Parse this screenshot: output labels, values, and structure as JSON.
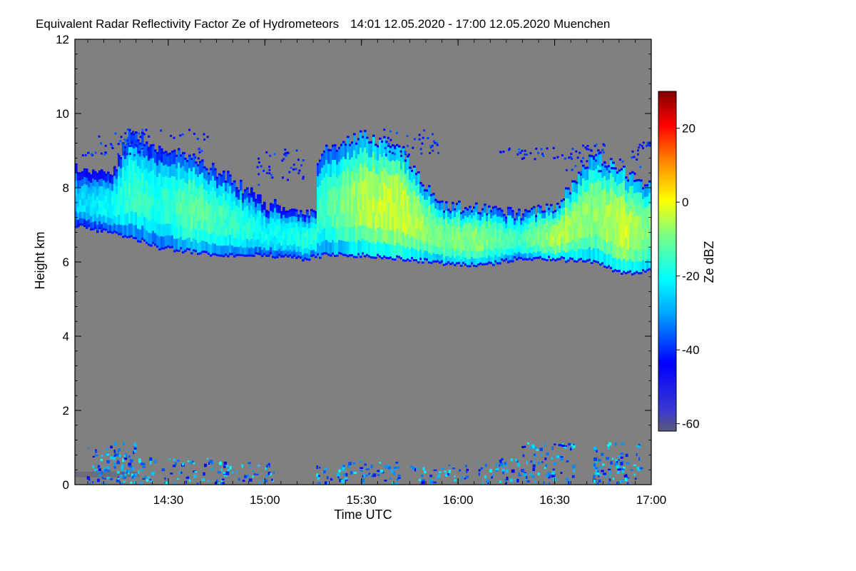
{
  "chart_data": {
    "type": "heatmap",
    "title": "Equivalent Radar Reflectivity Factor Ze of Hydrometeors",
    "time_range": "14:01 12.05.2020 - 17:00 12.05.2020",
    "location": "Muenchen",
    "xlabel": "Time UTC",
    "ylabel": "Height km",
    "x_ticks": [
      "14:30",
      "15:00",
      "15:30",
      "16:00",
      "16:30",
      "17:00"
    ],
    "x_tick_hours": [
      14.5,
      15.0,
      15.5,
      16.0,
      16.5,
      17.0
    ],
    "xlim_hours": [
      14.0167,
      17.0
    ],
    "y_ticks": [
      "0",
      "2",
      "4",
      "6",
      "8",
      "10",
      "12"
    ],
    "y_tick_values": [
      0,
      2,
      4,
      6,
      8,
      10,
      12
    ],
    "ylim": [
      0,
      12
    ],
    "colorbar": {
      "label": "Ze dBZ",
      "ticks": [
        "20",
        "0",
        "-20",
        "-40",
        "-60"
      ],
      "tick_values": [
        20,
        0,
        -20,
        -40,
        -60
      ],
      "range": [
        -62,
        30
      ],
      "colormap": "jet"
    },
    "background_color": "#808080",
    "cloud_layer": {
      "description": "upper cloud band",
      "hours": [
        14.02,
        14.2,
        14.3,
        14.45,
        14.6,
        14.8,
        15.0,
        15.2,
        15.3,
        15.5,
        15.7,
        15.9,
        16.1,
        16.3,
        16.5,
        16.7,
        16.85,
        17.0
      ],
      "base_km": [
        7.0,
        6.8,
        6.7,
        6.4,
        6.3,
        6.2,
        6.2,
        6.1,
        6.2,
        6.2,
        6.1,
        6.0,
        5.9,
        6.1,
        6.1,
        6.0,
        5.7,
        5.8
      ],
      "top_km": [
        8.5,
        8.3,
        9.5,
        9.0,
        8.8,
        8.3,
        7.5,
        7.5,
        9.0,
        9.4,
        9.0,
        7.5,
        7.4,
        7.3,
        7.4,
        8.9,
        8.4,
        8.0
      ],
      "core_dbz": [
        -25,
        -20,
        -15,
        -18,
        -12,
        -15,
        -20,
        -18,
        -15,
        -5,
        -3,
        -10,
        -8,
        -15,
        -5,
        -8,
        -3,
        -10
      ]
    },
    "low_clutter": {
      "description": "near-ground echoes",
      "height_range_km": [
        0,
        1.2
      ],
      "dbz_range": [
        -45,
        -20
      ]
    }
  }
}
